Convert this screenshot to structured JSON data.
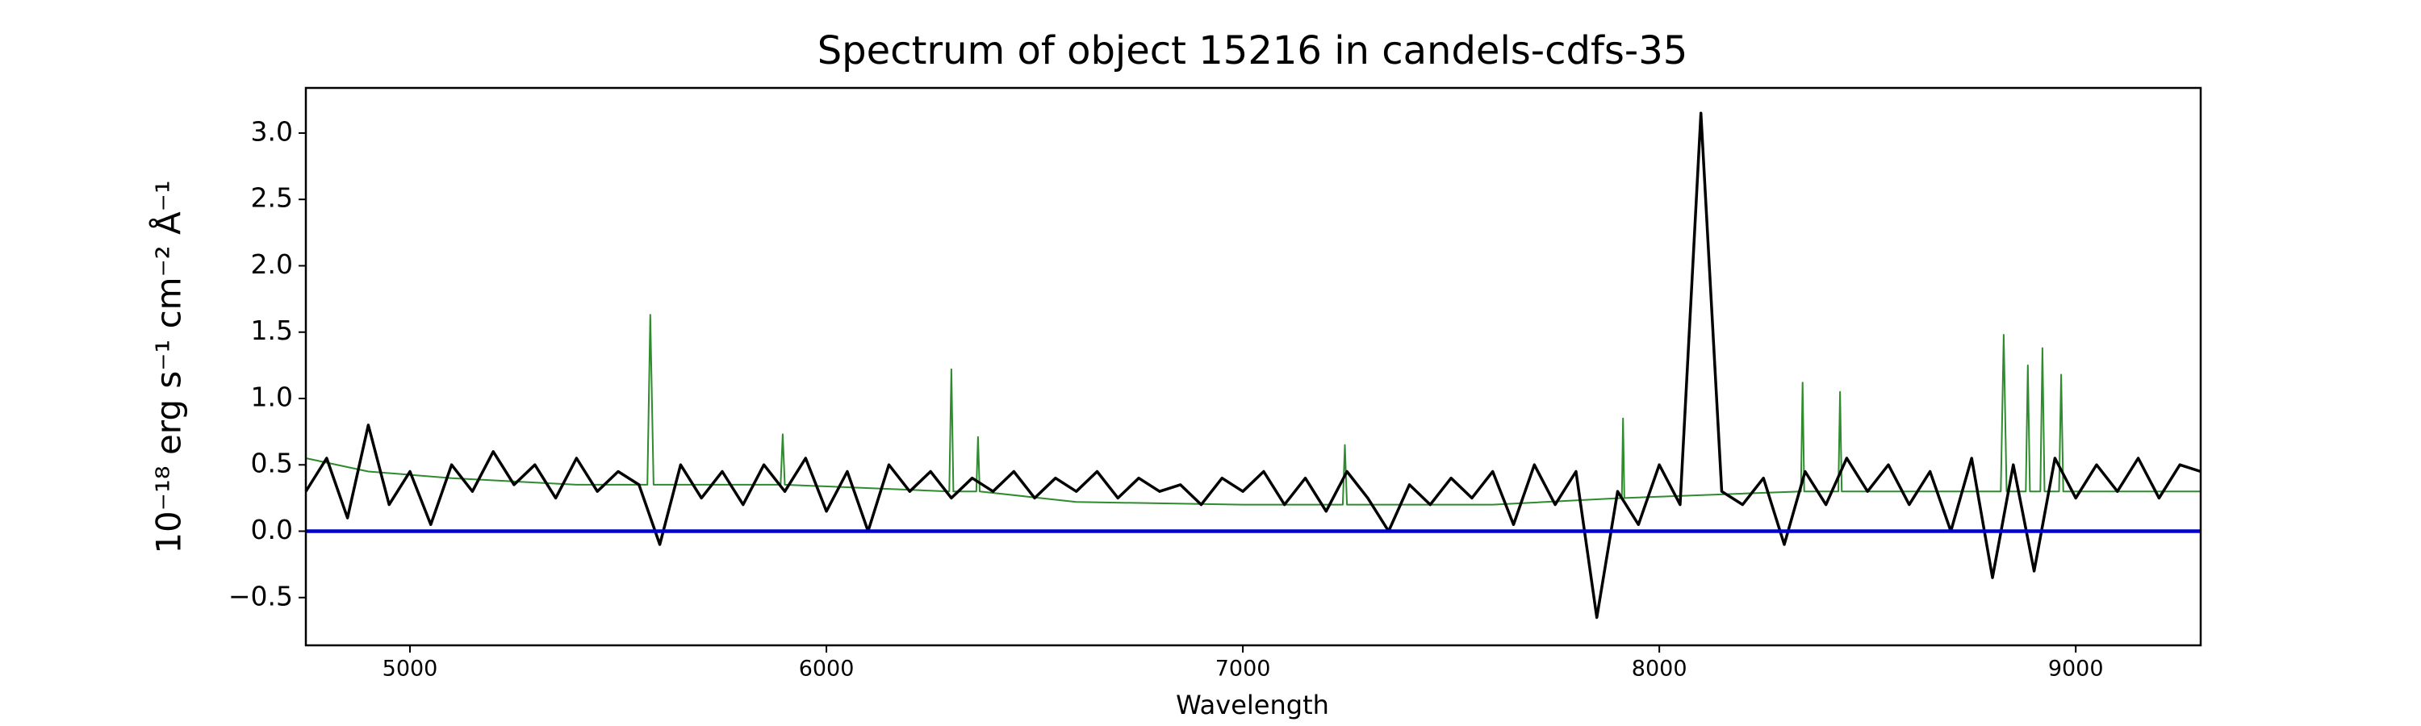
{
  "chart_data": {
    "type": "line",
    "title": "Spectrum of object 15216 in candels-cdfs-35",
    "x_label": "Wavelength",
    "y_label": "10⁻¹⁸ erg s⁻¹ cm⁻² Å⁻¹",
    "x": [
      4750,
      4800,
      4850,
      4900,
      4950,
      5000,
      5050,
      5100,
      5150,
      5200,
      5250,
      5300,
      5350,
      5400,
      5450,
      5500,
      5550,
      5600,
      5650,
      5700,
      5750,
      5800,
      5850,
      5900,
      5950,
      6000,
      6050,
      6100,
      6150,
      6200,
      6250,
      6300,
      6350,
      6400,
      6450,
      6500,
      6550,
      6600,
      6650,
      6700,
      6750,
      6800,
      6850,
      6900,
      6950,
      7000,
      7050,
      7100,
      7150,
      7200,
      7250,
      7300,
      7350,
      7400,
      7450,
      7500,
      7550,
      7600,
      7650,
      7700,
      7750,
      7800,
      7850,
      7900,
      7950,
      8000,
      8050,
      8100,
      8150,
      8200,
      8250,
      8300,
      8350,
      8400,
      8450,
      8500,
      8550,
      8600,
      8650,
      8700,
      8750,
      8800,
      8850,
      8900,
      8950,
      9000,
      9050,
      9100,
      9150,
      9200,
      9250,
      9300
    ],
    "series": [
      {
        "color": "#2e8b2e",
        "width": 2,
        "x": [
          4750,
          4900,
          5100,
          5400,
          5570,
          5577,
          5585,
          5890,
          5895,
          5900,
          6295,
          6300,
          6305,
          6360,
          6364,
          6368,
          6600,
          7000,
          7240,
          7245,
          7250,
          7600,
          7910,
          7913,
          7916,
          8340,
          8344,
          8348,
          8430,
          8434,
          8438,
          8820,
          8827,
          8834,
          8880,
          8885,
          8890,
          8915,
          8920,
          8925,
          8960,
          8965,
          8970,
          9300
        ],
        "values": [
          0.55,
          0.45,
          0.4,
          0.35,
          0.35,
          1.63,
          0.35,
          0.35,
          0.73,
          0.35,
          0.3,
          1.22,
          0.3,
          0.3,
          0.71,
          0.3,
          0.22,
          0.2,
          0.2,
          0.65,
          0.2,
          0.2,
          0.25,
          0.85,
          0.25,
          0.3,
          1.12,
          0.3,
          0.3,
          1.05,
          0.3,
          0.3,
          1.48,
          0.3,
          0.3,
          1.25,
          0.3,
          0.3,
          1.38,
          0.3,
          0.3,
          1.18,
          0.3,
          0.3
        ]
      },
      {
        "color": "#000000",
        "width": 3.5,
        "values": [
          0.3,
          0.55,
          0.1,
          0.8,
          0.2,
          0.45,
          0.05,
          0.5,
          0.3,
          0.6,
          0.35,
          0.5,
          0.25,
          0.55,
          0.3,
          0.45,
          0.35,
          -0.1,
          0.5,
          0.25,
          0.45,
          0.2,
          0.5,
          0.3,
          0.55,
          0.15,
          0.45,
          0.0,
          0.5,
          0.3,
          0.45,
          0.25,
          0.4,
          0.3,
          0.45,
          0.25,
          0.4,
          0.3,
          0.45,
          0.25,
          0.4,
          0.3,
          0.35,
          0.2,
          0.4,
          0.3,
          0.45,
          0.2,
          0.4,
          0.15,
          0.45,
          0.25,
          0.0,
          0.35,
          0.2,
          0.4,
          0.25,
          0.45,
          0.05,
          0.5,
          0.2,
          0.45,
          -0.65,
          0.3,
          0.05,
          0.5,
          0.2,
          3.15,
          0.3,
          0.2,
          0.4,
          -0.1,
          0.45,
          0.2,
          0.55,
          0.3,
          0.5,
          0.2,
          0.45,
          0.0,
          0.55,
          -0.35,
          0.5,
          -0.3,
          0.55,
          0.25,
          0.5,
          0.3,
          0.55,
          0.25,
          0.5,
          0.45
        ]
      }
    ],
    "zero_line": {
      "value": 0,
      "color": "#0000cc"
    },
    "xlim": [
      4750,
      9300
    ],
    "xticks": [
      5000,
      6000,
      7000,
      8000,
      9000
    ],
    "ylim": [
      -0.86,
      3.34
    ],
    "yticks": [
      {
        "value": -0.5,
        "label": "−0.5"
      },
      {
        "value": 0,
        "label": "0.0"
      },
      {
        "value": 0.5,
        "label": "0.5"
      },
      {
        "value": 1,
        "label": "1.0"
      },
      {
        "value": 1.5,
        "label": "1.5"
      },
      {
        "value": 2,
        "label": "2.0"
      },
      {
        "value": 2.5,
        "label": "2.5"
      },
      {
        "value": 3,
        "label": "3.0"
      }
    ]
  }
}
